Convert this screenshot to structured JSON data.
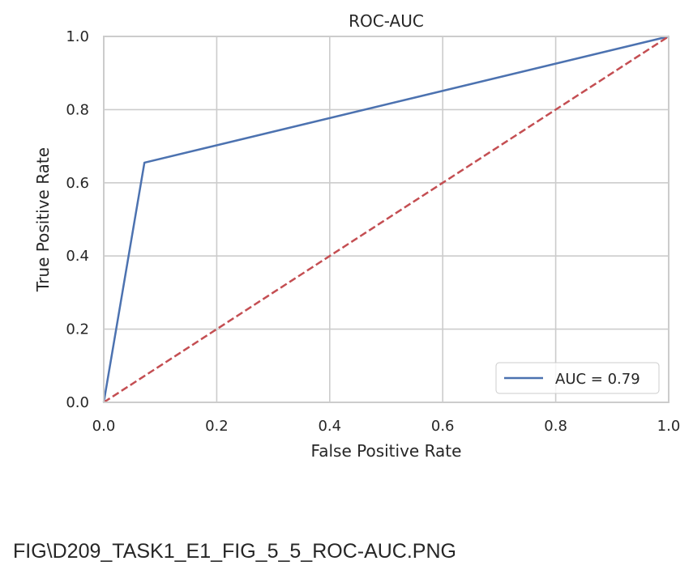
{
  "caption": "FIG\\D209_TASK1_E1_FIG_5_5_ROC-AUC.PNG",
  "chart_data": {
    "type": "line",
    "title": "ROC-AUC",
    "xlabel": "False Positive Rate",
    "ylabel": "True Positive Rate",
    "xlim": [
      0.0,
      1.0
    ],
    "ylim": [
      0.0,
      1.0
    ],
    "xticks": [
      0.0,
      0.2,
      0.4,
      0.6,
      0.8,
      1.0
    ],
    "yticks": [
      0.0,
      0.2,
      0.4,
      0.6,
      0.8,
      1.0
    ],
    "xtick_labels": [
      "0.0",
      "0.2",
      "0.4",
      "0.6",
      "0.8",
      "1.0"
    ],
    "ytick_labels": [
      "0.0",
      "0.2",
      "0.4",
      "0.6",
      "0.8",
      "1.0"
    ],
    "grid": true,
    "legend_position": "lower-right",
    "series": [
      {
        "name": "AUC = 0.79",
        "x": [
          0.0,
          0.072,
          1.0
        ],
        "y": [
          0.0,
          0.655,
          1.0
        ],
        "color": "#4c72b0",
        "style": "solid"
      },
      {
        "x": [
          0.0,
          1.0
        ],
        "y": [
          0.0,
          1.0
        ],
        "color": "#c44e52",
        "style": "dashed"
      }
    ]
  }
}
